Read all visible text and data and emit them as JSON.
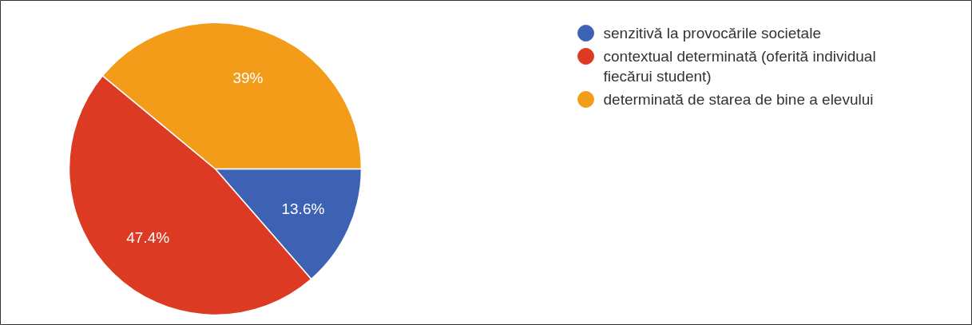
{
  "chart_data": {
    "type": "pie",
    "categories": [
      "senzitivă la provocările societale",
      "contextual determinată (oferită individual fiecărui student)",
      "determinată de starea de bine a elevului"
    ],
    "values": [
      13.6,
      47.4,
      39
    ],
    "colors": [
      "#3d62b3",
      "#dc3a22",
      "#f39c19"
    ],
    "value_labels": [
      "13.6%",
      "47.4%",
      "39%"
    ],
    "legend": "top right"
  }
}
